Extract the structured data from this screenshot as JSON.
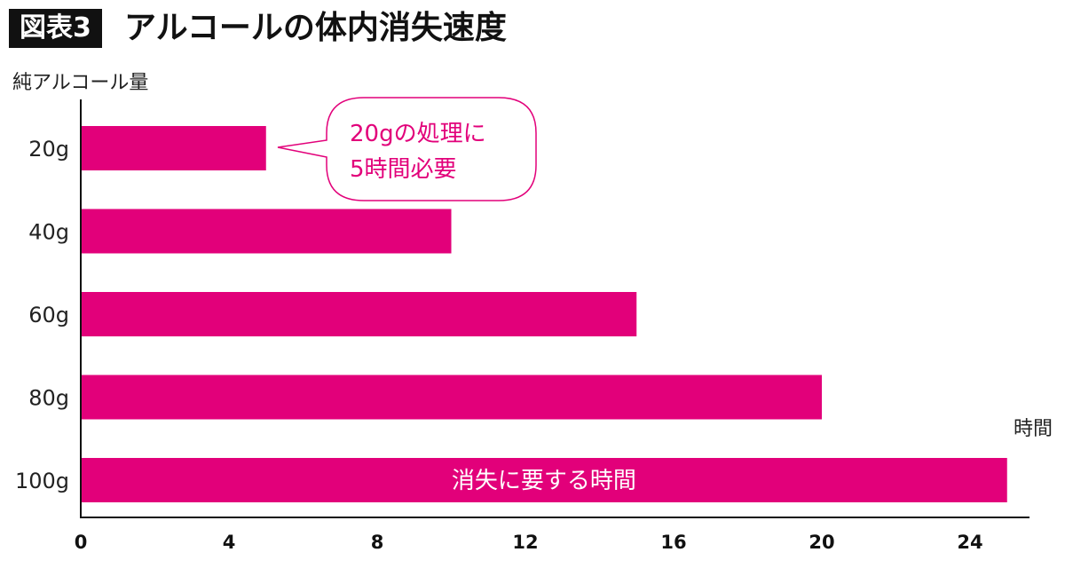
{
  "header": {
    "badge": "図表3",
    "title": "アルコールの体内消失速度"
  },
  "chart_data": {
    "type": "bar",
    "orientation": "horizontal",
    "ylabel": "純アルコール量",
    "xlabel": "時間",
    "categories": [
      "20g",
      "40g",
      "60g",
      "80g",
      "100g"
    ],
    "values": [
      5,
      10,
      15,
      20,
      25
    ],
    "xlim": [
      0,
      26
    ],
    "xticks": [
      "0",
      "4",
      "8",
      "12",
      "16",
      "20",
      "24"
    ],
    "bar_color": "#E2007A",
    "bar_label": "消失に要する時間",
    "callout": {
      "line1": "20gの処理に",
      "line2": "5時間必要"
    },
    "grid": false
  }
}
